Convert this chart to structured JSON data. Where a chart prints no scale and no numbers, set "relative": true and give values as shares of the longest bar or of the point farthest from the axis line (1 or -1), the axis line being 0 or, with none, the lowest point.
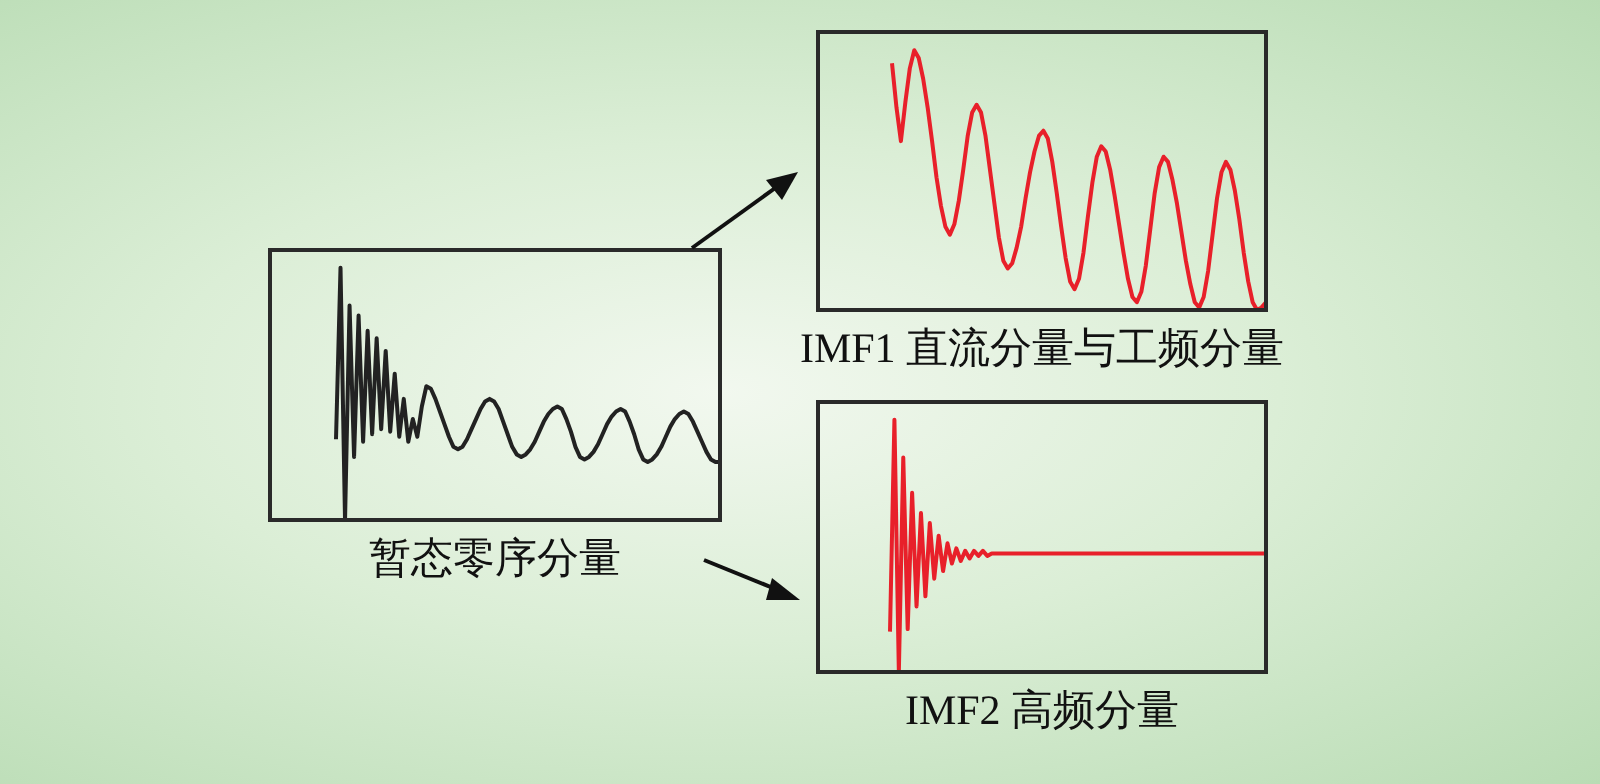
{
  "chart_data": [
    {
      "type": "line",
      "title": "暂态零序分量",
      "relative": true,
      "marker": "none",
      "categories": [
        null,
        null,
        null,
        null,
        null,
        null,
        null,
        null,
        null,
        null,
        null,
        null,
        null,
        null,
        null,
        null,
        null,
        null,
        null,
        null,
        null,
        null,
        null,
        null,
        null,
        null,
        null,
        null,
        null,
        null,
        null,
        null,
        null,
        null,
        null,
        null,
        null,
        null,
        null,
        null,
        null,
        null,
        null,
        null,
        null,
        null,
        null,
        null,
        null,
        null,
        null,
        null,
        null,
        null,
        null,
        null,
        null,
        null,
        null,
        null,
        null,
        null,
        null,
        null,
        null,
        null,
        null,
        null,
        null,
        null,
        null,
        null,
        null,
        null,
        null,
        null,
        null,
        null,
        null,
        null,
        null,
        null,
        null,
        null,
        null,
        null
      ],
      "series": [
        {
          "color": "#222222",
          "values": [
            0.32,
            1,
            0,
            0.85,
            0.25,
            0.81,
            0.31,
            0.75,
            0.34,
            0.72,
            0.36,
            0.67,
            0.35,
            0.58,
            0.33,
            0.48,
            0.31,
            0.4,
            0.33,
            0.45,
            0.53,
            0.52,
            0.48,
            0.43,
            0.38,
            0.33,
            0.29,
            0.28,
            0.29,
            0.32,
            0.36,
            0.4,
            0.44,
            0.47,
            0.48,
            0.47,
            0.44,
            0.39,
            0.34,
            0.29,
            0.26,
            0.25,
            0.26,
            0.28,
            0.31,
            0.35,
            0.39,
            0.42,
            0.44,
            0.45,
            0.44,
            0.4,
            0.35,
            0.29,
            0.25,
            0.24,
            0.25,
            0.27,
            0.3,
            0.34,
            0.38,
            0.41,
            0.43,
            0.44,
            0.43,
            0.39,
            0.34,
            0.28,
            0.24,
            0.23,
            0.24,
            0.26,
            0.29,
            0.33,
            0.37,
            0.4,
            0.42,
            0.43,
            0.42,
            0.39,
            0.35,
            0.31,
            0.27,
            0.24,
            0.23,
            0.23
          ]
        }
      ]
    },
    {
      "type": "line",
      "title": "IMF1 直流分量与工频分量",
      "relative": true,
      "marker": "none",
      "categories": [
        null,
        null,
        null,
        null,
        null,
        null,
        null,
        null,
        null,
        null,
        null,
        null,
        null,
        null,
        null,
        null,
        null,
        null,
        null,
        null,
        null,
        null,
        null,
        null,
        null,
        null,
        null,
        null,
        null,
        null,
        null,
        null,
        null,
        null,
        null,
        null,
        null,
        null,
        null,
        null,
        null,
        null,
        null,
        null,
        null,
        null,
        null,
        null,
        null,
        null,
        null,
        null,
        null,
        null,
        null,
        null,
        null,
        null,
        null,
        null,
        null,
        null,
        null,
        null,
        null,
        null,
        null,
        null,
        null,
        null,
        null,
        null,
        null,
        null,
        null,
        null,
        null,
        null,
        null,
        null,
        null,
        null,
        null,
        null,
        null
      ],
      "series": [
        {
          "color": "#e8202a",
          "values": [
            0.95,
            0.78,
            0.65,
            0.8,
            0.93,
            1,
            0.97,
            0.89,
            0.78,
            0.65,
            0.51,
            0.4,
            0.32,
            0.29,
            0.33,
            0.42,
            0.54,
            0.67,
            0.76,
            0.79,
            0.76,
            0.67,
            0.54,
            0.41,
            0.28,
            0.19,
            0.16,
            0.18,
            0.24,
            0.32,
            0.43,
            0.53,
            0.61,
            0.67,
            0.69,
            0.66,
            0.57,
            0.45,
            0.32,
            0.2,
            0.11,
            0.08,
            0.12,
            0.22,
            0.36,
            0.49,
            0.59,
            0.63,
            0.61,
            0.54,
            0.44,
            0.33,
            0.22,
            0.12,
            0.05,
            0.03,
            0.07,
            0.17,
            0.31,
            0.45,
            0.55,
            0.59,
            0.57,
            0.5,
            0.41,
            0.3,
            0.19,
            0.1,
            0.03,
            0.01,
            0.05,
            0.15,
            0.29,
            0.43,
            0.53,
            0.57,
            0.54,
            0.46,
            0.35,
            0.22,
            0.11,
            0.03,
            0,
            0.01,
            0.03
          ]
        }
      ]
    },
    {
      "type": "line",
      "title": "IMF2 高频分量",
      "relative": true,
      "marker": "none",
      "categories": [
        null,
        null,
        null,
        null,
        null,
        null,
        null,
        null,
        null,
        null,
        null,
        null,
        null,
        null,
        null,
        null,
        null,
        null,
        null,
        null,
        null,
        null,
        null,
        null,
        null,
        null,
        null,
        null,
        null,
        null,
        null,
        null,
        null,
        null,
        null,
        null,
        null,
        null,
        null,
        null,
        null,
        null,
        null,
        null,
        null,
        null,
        null,
        null,
        null,
        null,
        null,
        null,
        null,
        null,
        null,
        null,
        null,
        null,
        null,
        null,
        null,
        null,
        null,
        null,
        null,
        null,
        null,
        null,
        null,
        null,
        null,
        null,
        null,
        null,
        null,
        null,
        null,
        null,
        null,
        null,
        null,
        null,
        null,
        null,
        null,
        null
      ],
      "series": [
        {
          "color": "#e8202a",
          "values": [
            0.16,
            1,
            0,
            0.85,
            0.17,
            0.71,
            0.26,
            0.63,
            0.3,
            0.59,
            0.37,
            0.54,
            0.4,
            0.51,
            0.43,
            0.49,
            0.44,
            0.48,
            0.45,
            0.48,
            0.46,
            0.48,
            0.46,
            0.47,
            0.47,
            0.47,
            0.47,
            0.47,
            0.47,
            0.47,
            0.47,
            0.47,
            0.47,
            0.47,
            0.47,
            0.47,
            0.47,
            0.47,
            0.47,
            0.47,
            0.47,
            0.47,
            0.47,
            0.47,
            0.47,
            0.47,
            0.47,
            0.47,
            0.47,
            0.47,
            0.47,
            0.47,
            0.47,
            0.47,
            0.47,
            0.47,
            0.47,
            0.47,
            0.47,
            0.47,
            0.47,
            0.47,
            0.47,
            0.47,
            0.47,
            0.47,
            0.47,
            0.47,
            0.47,
            0.47,
            0.47,
            0.47,
            0.47,
            0.47,
            0.47,
            0.47,
            0.47,
            0.47,
            0.47,
            0.47,
            0.47,
            0.47,
            0.47,
            0.47,
            0.47,
            0.47
          ]
        }
      ]
    }
  ]
}
